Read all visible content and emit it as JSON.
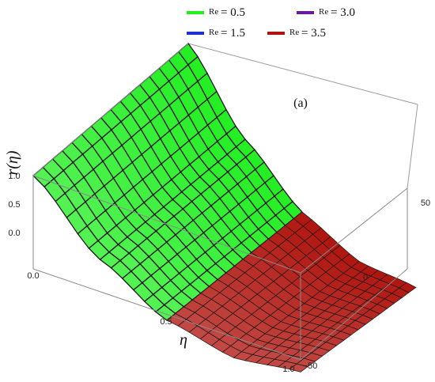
{
  "chart_data": {
    "type": "surface3d",
    "panel_label": "(a)",
    "xlabel": "η",
    "zlabel": "r(η)",
    "x_ticks": [
      "0.0",
      "0.5",
      "1.0"
    ],
    "z_ticks": [
      "1.0",
      "0.5",
      "0.0"
    ],
    "y_ticks": [
      "50",
      "0",
      "−50"
    ],
    "xlim": [
      0,
      1
    ],
    "ylim": [
      -50,
      50
    ],
    "zlim": [
      -0.5,
      1.0
    ],
    "legend_position": "top",
    "series": [
      {
        "name": "Re = 0.5",
        "prefix": "Re",
        "value": "= 0.5",
        "color": "#22ee22",
        "visible_region": "η < 0.5"
      },
      {
        "name": "Re = 3.0",
        "prefix": "Re",
        "value": "= 3.0",
        "color": "#6a1a9a",
        "visible_region": "hidden"
      },
      {
        "name": "Re = 1.5",
        "prefix": "Re",
        "value": "= 1.5",
        "color": "#1f2fd6",
        "visible_region": "hidden"
      },
      {
        "name": "Re = 3.5",
        "prefix": "Re",
        "value": "= 3.5",
        "color": "#b0140e",
        "visible_region": "η ≥ 0.5"
      }
    ],
    "profile": [
      {
        "eta": 0.0,
        "r": 1.0
      },
      {
        "eta": 0.25,
        "r": 0.35
      },
      {
        "eta": 0.5,
        "r": -0.05
      },
      {
        "eta": 0.75,
        "r": -0.2
      },
      {
        "eta": 1.0,
        "r": -0.1
      }
    ]
  }
}
